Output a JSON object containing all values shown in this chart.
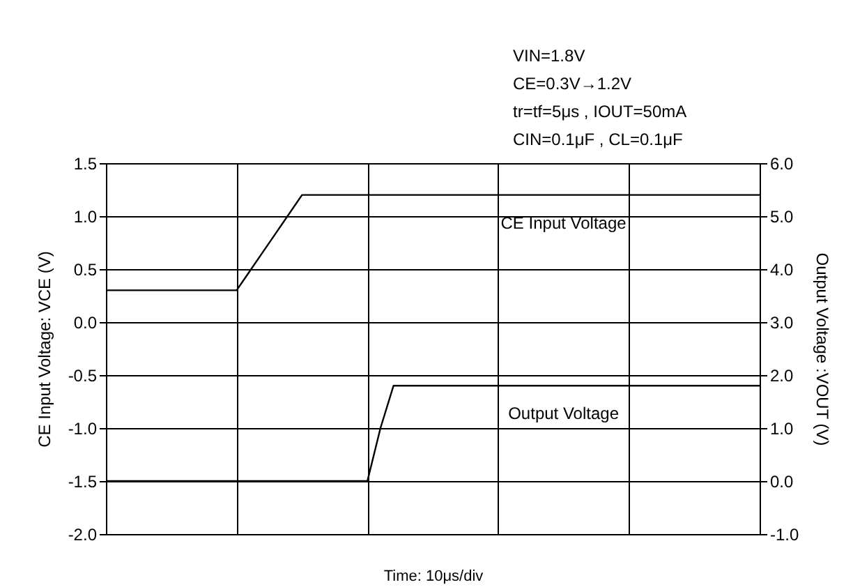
{
  "chart_data": {
    "type": "line",
    "annotations": [
      "VIN=1.8V",
      "CE=0.3V→1.2V",
      "tr=tf=5μs , IOUT=50mA",
      "CIN=0.1μF , CL=0.1μF"
    ],
    "xlabel": "Time: 10μs/div",
    "ylabel": "CE Input Voltage: VCE (V)",
    "y2label": "Output Voltage :VOUT (V)",
    "categories": [
      null,
      null,
      null,
      null,
      null,
      null,
      null,
      null,
      null,
      null,
      null,
      null,
      null,
      null,
      null,
      null,
      null,
      null,
      null,
      null,
      null,
      null,
      null,
      null,
      null,
      null,
      null,
      null,
      null,
      null,
      null,
      null,
      null,
      null,
      null,
      null,
      null,
      null,
      null,
      null,
      null,
      null,
      null,
      null,
      null,
      null,
      null,
      null,
      null,
      null,
      null
    ],
    "ylim": [
      -2,
      1.5
    ],
    "yticks": [
      {
        "value": -2,
        "label": "-2.0"
      },
      {
        "value": -1.5,
        "label": "-1.5"
      },
      {
        "value": -1,
        "label": "-1.0"
      },
      {
        "value": -0.5,
        "label": "-0.5"
      },
      {
        "value": 0,
        "label": "0.0"
      },
      {
        "value": 0.5,
        "label": "0.5"
      },
      {
        "value": 1,
        "label": "1.0"
      },
      {
        "value": 1.5,
        "label": "1.5"
      }
    ],
    "y2lim": [
      -1,
      6
    ],
    "y2ticks": [
      {
        "value": -1,
        "label": "-1.0"
      },
      {
        "value": 0,
        "label": "0.0"
      },
      {
        "value": 1,
        "label": "1.0"
      },
      {
        "value": 2,
        "label": "2.0"
      },
      {
        "value": 3,
        "label": "3.0"
      },
      {
        "value": 4,
        "label": "4.0"
      },
      {
        "value": 5,
        "label": "5.0"
      },
      {
        "value": 6,
        "label": "6.0"
      }
    ],
    "grid": true,
    "series": [
      {
        "name": "CE Input Voltage",
        "color": "#000000",
        "values": [
          0.3,
          0.3,
          0.3,
          0.3,
          0.3,
          0.3,
          0.3,
          0.3,
          0.3,
          0.3,
          0.3,
          0.48,
          0.66,
          0.84,
          1.02,
          1.2,
          1.2,
          1.2,
          1.2,
          1.2,
          1.2,
          1.2,
          1.2,
          1.2,
          1.2,
          1.2,
          1.2,
          1.2,
          1.2,
          1.2,
          1.2,
          1.2,
          1.2,
          1.2,
          1.2,
          1.2,
          1.2,
          1.2,
          1.2,
          1.2,
          1.2,
          1.2,
          1.2,
          1.2,
          1.2,
          1.2,
          1.2,
          1.2,
          1.2,
          1.2,
          1.2
        ]
      },
      {
        "name": "Output Voltage",
        "color": "#000000",
        "axis": "y2",
        "values": [
          0.0,
          0.0,
          0.0,
          0.0,
          0.0,
          0.0,
          0.0,
          0.0,
          0.0,
          0.0,
          0.0,
          0.0,
          0.0,
          0.0,
          0.0,
          0.0,
          0.0,
          0.0,
          0.0,
          0.0,
          0.0,
          1.0,
          1.8,
          1.8,
          1.8,
          1.8,
          1.8,
          1.8,
          1.8,
          1.8,
          1.8,
          1.8,
          1.8,
          1.8,
          1.8,
          1.8,
          1.8,
          1.8,
          1.8,
          1.8,
          1.8,
          1.8,
          1.8,
          1.8,
          1.8,
          1.8,
          1.8,
          1.8,
          1.8,
          1.8,
          1.8
        ]
      }
    ]
  }
}
